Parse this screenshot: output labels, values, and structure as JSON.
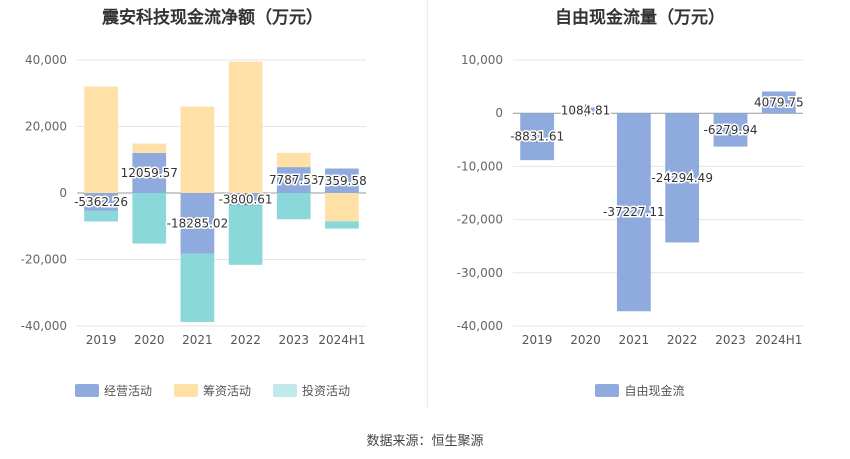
{
  "chart_data": [
    {
      "type": "bar",
      "stacked": true,
      "title": "震安科技现金流净额（万元）",
      "categories": [
        "2019",
        "2020",
        "2021",
        "2022",
        "2023",
        "2024H1"
      ],
      "ylim": [
        -40000,
        40000
      ],
      "yticks": [
        40000,
        20000,
        0,
        -20000,
        -40000
      ],
      "ytick_labels": [
        "40,000",
        "20,000",
        "0",
        "-20,000",
        "-40,000"
      ],
      "grid": true,
      "legend_position": "bottom",
      "series": [
        {
          "name": "经营活动",
          "color": "#8faadc",
          "values": [
            -5362.26,
            12059.57,
            -18285.02,
            -3800.61,
            7787.53,
            7359.58
          ]
        },
        {
          "name": "筹资活动",
          "color": "#ffe0a6",
          "values": [
            32000,
            2800,
            26000,
            39500,
            4300,
            -8500
          ]
        },
        {
          "name": "投资活动",
          "color": "#8ad8da",
          "values": [
            -3200,
            -15200,
            -20500,
            -17800,
            -7900,
            -2200
          ]
        }
      ],
      "data_labels": [
        "-5362.26",
        "12059.57",
        "-18285.02",
        "-3800.61",
        "7787.53",
        "7359.58"
      ]
    },
    {
      "type": "bar",
      "title": "自由现金流量（万元）",
      "categories": [
        "2019",
        "2020",
        "2021",
        "2022",
        "2023",
        "2024H1"
      ],
      "ylim": [
        -40000,
        10000
      ],
      "yticks": [
        10000,
        0,
        -10000,
        -20000,
        -30000,
        -40000
      ],
      "ytick_labels": [
        "10,000",
        "0",
        "-10,000",
        "-20,000",
        "-30,000",
        "-40,000"
      ],
      "grid": true,
      "legend_position": "bottom",
      "series": [
        {
          "name": "自由现金流",
          "color": "#8faadc",
          "values": [
            -8831.61,
            1084.81,
            -37227.11,
            -24294.49,
            -6279.94,
            4079.75
          ]
        }
      ],
      "data_labels": [
        "-8831.61",
        "1084.81",
        "-37227.11",
        "-24294.49",
        "-6279.94",
        "4079.75"
      ]
    }
  ],
  "footer": {
    "source": "数据来源：恒生聚源"
  }
}
